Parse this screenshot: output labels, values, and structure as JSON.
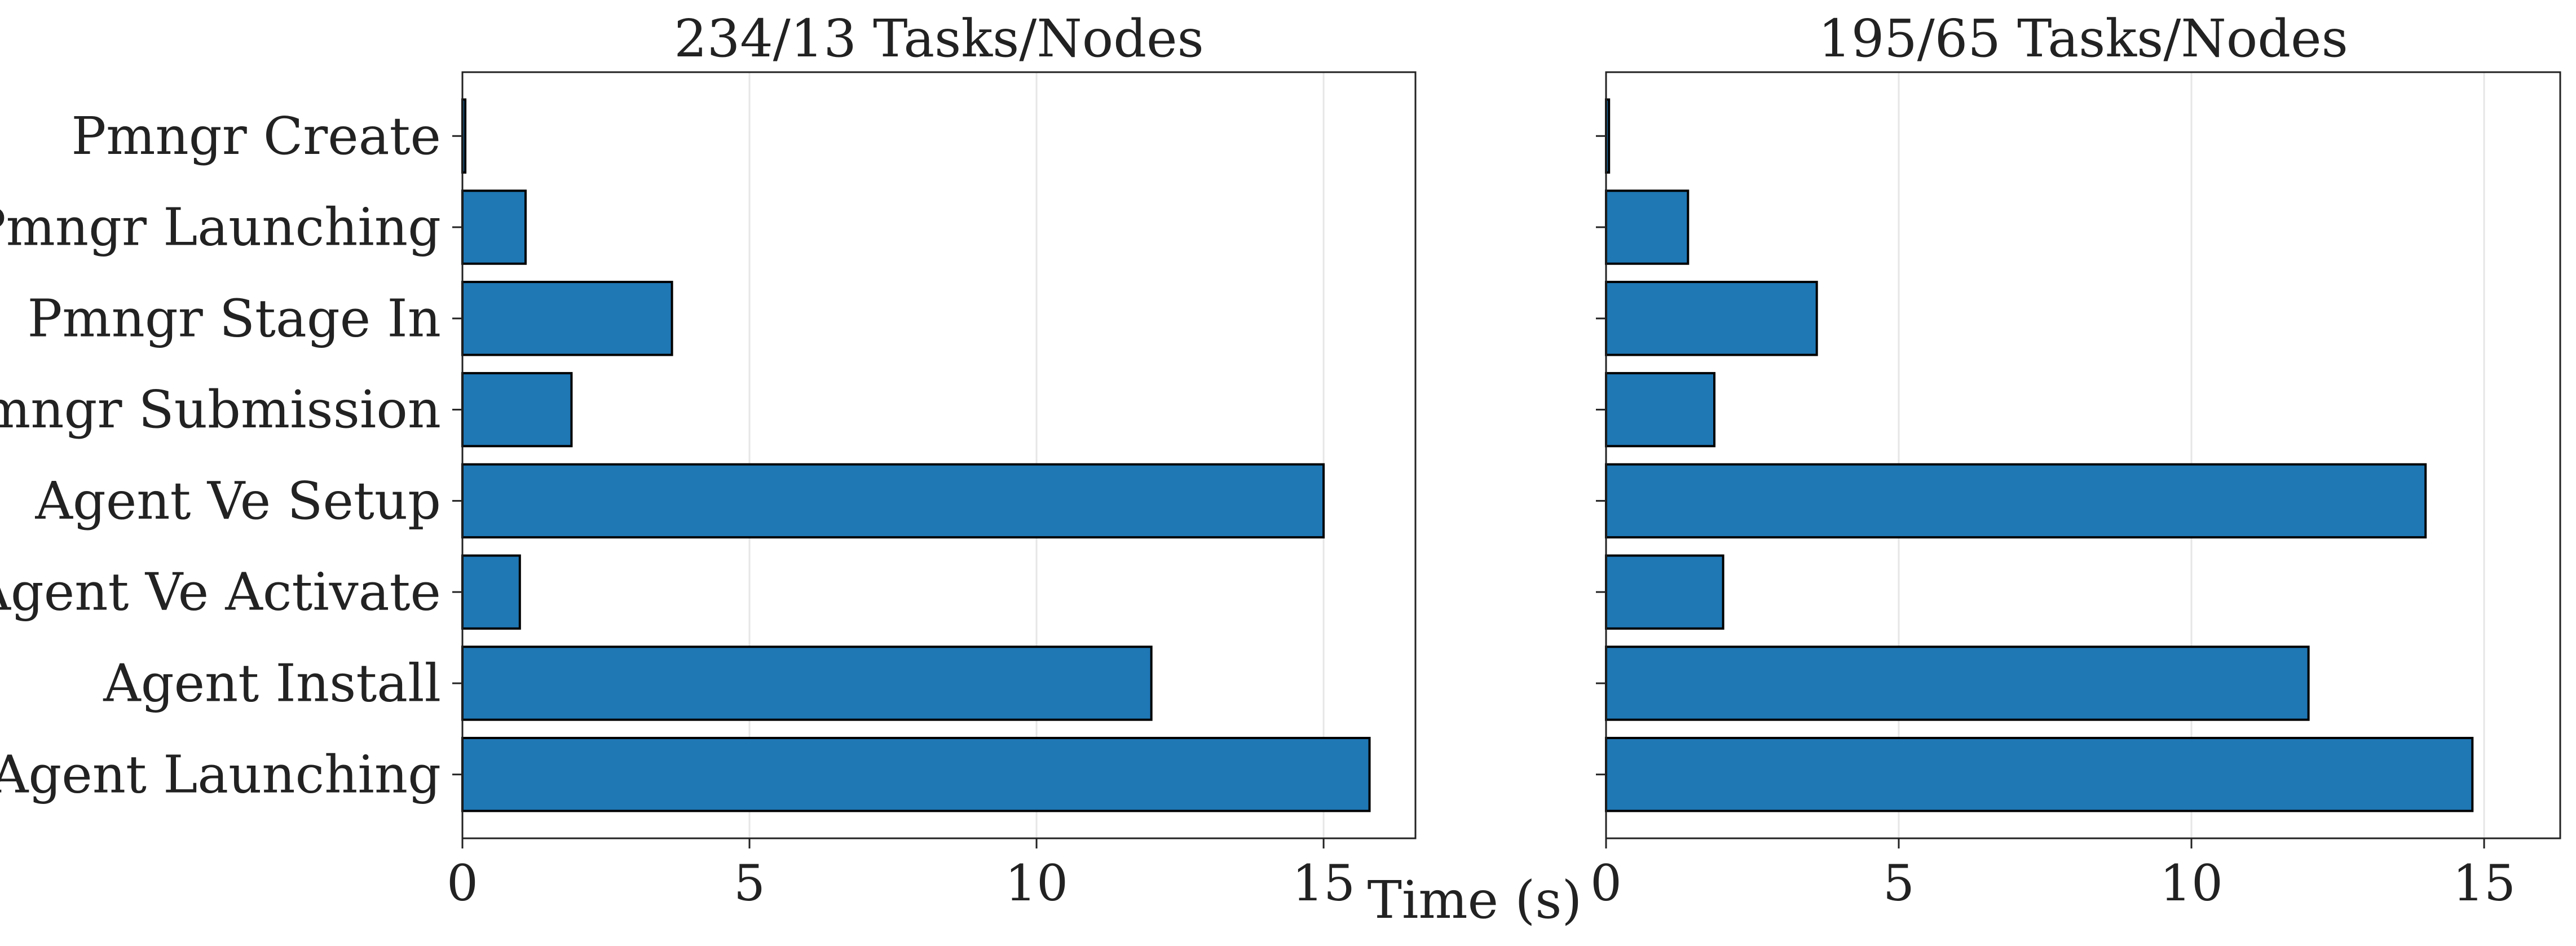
{
  "chart_data": [
    {
      "type": "bar",
      "orientation": "horizontal",
      "title": "234/13 Tasks/Nodes",
      "categories": [
        "Pmngr Create",
        "Pmngr Launching",
        "Pmngr Stage In",
        "Pmngr Submission",
        "Agent Ve Setup",
        "Agent Ve Activate",
        "Agent Install",
        "Agent Launching"
      ],
      "values": [
        0.05,
        1.1,
        3.65,
        1.9,
        15.0,
        1.0,
        12.0,
        15.8
      ],
      "xlim": [
        0,
        16.6
      ],
      "xticks": [
        0,
        5,
        10,
        15
      ],
      "xlabel": "Time (s)",
      "ylabel": "",
      "grid": "x",
      "show_ytick_labels": true
    },
    {
      "type": "bar",
      "orientation": "horizontal",
      "title": "195/65 Tasks/Nodes",
      "categories": [
        "Pmngr Create",
        "Pmngr Launching",
        "Pmngr Stage In",
        "Pmngr Submission",
        "Agent Ve Setup",
        "Agent Ve Activate",
        "Agent Install",
        "Agent Launching"
      ],
      "values": [
        0.05,
        1.4,
        3.6,
        1.85,
        14.0,
        2.0,
        12.0,
        14.8
      ],
      "xlim": [
        0,
        16.3
      ],
      "xticks": [
        0,
        5,
        10,
        15
      ],
      "xlabel": "",
      "ylabel": "",
      "grid": "x",
      "show_ytick_labels": false
    }
  ],
  "colors": {
    "bar_fill": "#1f77b4",
    "bar_edge": "#000000",
    "grid": "#e6e6e6",
    "axis": "#222222"
  }
}
